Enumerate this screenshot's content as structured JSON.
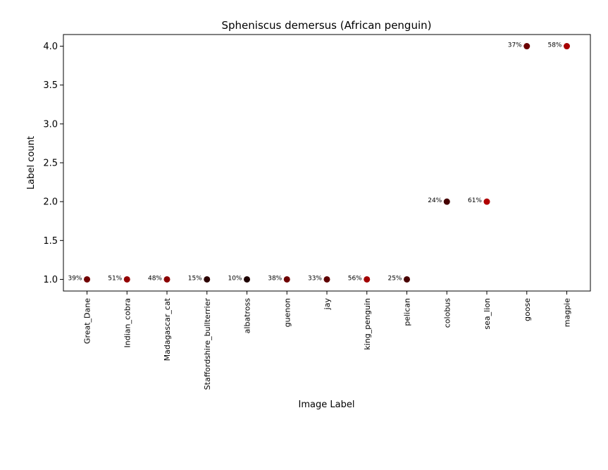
{
  "chart_data": {
    "type": "scatter",
    "title": "Spheniscus demersus (African penguin)",
    "xlabel": "Image Label",
    "ylabel": "Label count",
    "ylim": [
      0.85,
      4.15
    ],
    "yticks": [
      "1.0",
      "1.5",
      "2.0",
      "2.5",
      "3.0",
      "3.5",
      "4.0"
    ],
    "grid": false,
    "legend": "none",
    "categories": [
      "Great_Dane",
      "Indian_cobra",
      "Madagascar_cat",
      "Staffordshire_bullterrier",
      "albatross",
      "guenon",
      "jay",
      "king_penguin",
      "pelican",
      "colobus",
      "sea_lion",
      "goose",
      "magpie"
    ],
    "values": [
      1,
      1,
      1,
      1,
      1,
      1,
      1,
      1,
      1,
      2,
      2,
      4,
      4
    ],
    "percent_labels": [
      "39%",
      "51%",
      "48%",
      "15%",
      "10%",
      "38%",
      "33%",
      "56%",
      "25%",
      "24%",
      "61%",
      "37%",
      "58%"
    ],
    "percent_values": [
      39,
      51,
      48,
      15,
      10,
      38,
      33,
      56,
      25,
      24,
      61,
      37,
      58
    ],
    "color_scale": {
      "low": "#000000",
      "high": "#b00000"
    }
  }
}
